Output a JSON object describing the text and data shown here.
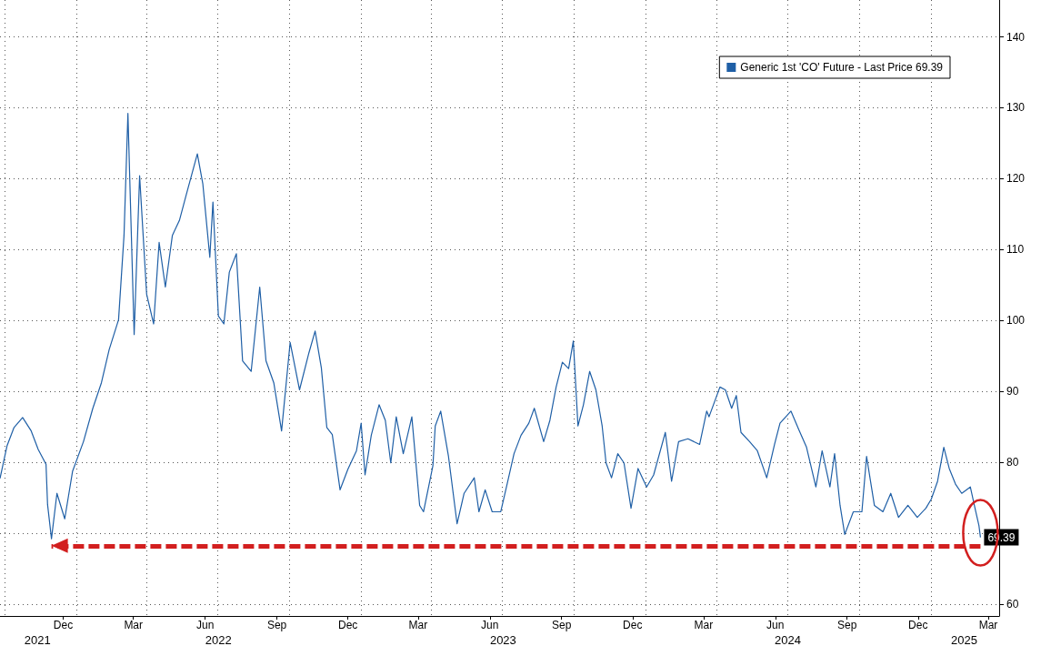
{
  "chart_data": {
    "type": "line",
    "xlim": [
      "2021-09-25",
      "2025-03-29"
    ],
    "xticks": [
      {
        "value": "2021-10-01",
        "label": null
      },
      {
        "value": "2022-01-01",
        "label": null
      },
      {
        "value": "2022-04-01",
        "label": null
      },
      {
        "value": "2022-07-01",
        "label": null
      },
      {
        "value": "2022-10-01",
        "label": null
      },
      {
        "value": "2023-01-01",
        "label": null
      },
      {
        "value": "2023-04-01",
        "label": null
      },
      {
        "value": "2023-07-01",
        "label": null
      },
      {
        "value": "2023-10-01",
        "label": null
      },
      {
        "value": "2024-01-01",
        "label": null
      },
      {
        "value": "2024-04-01",
        "label": null
      },
      {
        "value": "2024-07-01",
        "label": null
      },
      {
        "value": "2024-10-01",
        "label": null
      },
      {
        "value": "2025-01-01",
        "label": null
      },
      {
        "value": "2021-12-15",
        "label": "Dec"
      },
      {
        "value": "2022-03-15",
        "label": "Mar"
      },
      {
        "value": "2022-06-15",
        "label": "Jun"
      },
      {
        "value": "2022-09-15",
        "label": "Sep"
      },
      {
        "value": "2022-12-15",
        "label": "Dec"
      },
      {
        "value": "2023-03-15",
        "label": "Mar"
      },
      {
        "value": "2023-06-15",
        "label": "Jun"
      },
      {
        "value": "2023-09-15",
        "label": "Sep"
      },
      {
        "value": "2023-12-15",
        "label": "Dec"
      },
      {
        "value": "2024-03-15",
        "label": "Mar"
      },
      {
        "value": "2024-06-15",
        "label": "Jun"
      },
      {
        "value": "2024-09-15",
        "label": "Sep"
      },
      {
        "value": "2024-12-15",
        "label": "Dec"
      },
      {
        "value": "2025-03-15",
        "label": "Mar"
      }
    ],
    "x2lim": [
      "2021-09-25",
      "2025-03-29"
    ],
    "x2ticks": [
      {
        "value": "2021-11-12",
        "label": "2021"
      },
      {
        "value": "2022-07-02",
        "label": "2022"
      },
      {
        "value": "2023-07-02",
        "label": "2023"
      },
      {
        "value": "2024-07-01",
        "label": "2024"
      },
      {
        "value": "2025-02-12",
        "label": "2025"
      }
    ],
    "ylim": [
      58.3,
      145.2
    ],
    "yticks": [
      60,
      {
        "value": 70,
        "label": null
      },
      80,
      90,
      100,
      110,
      120,
      130,
      140
    ],
    "grid": true,
    "ref_lines": [
      {
        "axis": "y",
        "value": 68.2,
        "color": "#d21f1f",
        "line_style": "dashed"
      }
    ],
    "legend": "top right",
    "series": [
      {
        "name": "Generic 1st 'CO' Future - Last Price 69.39",
        "color": "#1f5fa6",
        "x": [
          "2021-09-25",
          "2021-10-04",
          "2021-10-13",
          "2021-10-24",
          "2021-11-04",
          "2021-11-13",
          "2021-11-23",
          "2021-11-25",
          "2021-11-30",
          "2021-12-07",
          "2021-12-17",
          "2021-12-27",
          "2022-01-10",
          "2022-01-22",
          "2022-02-02",
          "2022-02-12",
          "2022-02-24",
          "2022-03-03",
          "2022-03-08",
          "2022-03-16",
          "2022-03-23",
          "2022-04-01",
          "2022-04-10",
          "2022-04-17",
          "2022-04-25",
          "2022-05-04",
          "2022-05-13",
          "2022-05-22",
          "2022-06-05",
          "2022-06-12",
          "2022-06-21",
          "2022-06-25",
          "2022-07-02",
          "2022-07-09",
          "2022-07-16",
          "2022-07-25",
          "2022-08-02",
          "2022-08-13",
          "2022-08-24",
          "2022-09-01",
          "2022-09-11",
          "2022-09-21",
          "2022-10-02",
          "2022-10-14",
          "2022-10-26",
          "2022-11-03",
          "2022-11-11",
          "2022-11-18",
          "2022-11-25",
          "2022-12-05",
          "2022-12-15",
          "2022-12-26",
          "2023-01-01",
          "2023-01-06",
          "2023-01-14",
          "2023-01-24",
          "2023-02-01",
          "2023-02-08",
          "2023-02-15",
          "2023-02-24",
          "2023-03-07",
          "2023-03-17",
          "2023-03-22",
          "2023-04-03",
          "2023-04-06",
          "2023-04-13",
          "2023-04-23",
          "2023-05-04",
          "2023-05-13",
          "2023-05-26",
          "2023-06-01",
          "2023-06-09",
          "2023-06-18",
          "2023-06-29",
          "2023-07-08",
          "2023-07-16",
          "2023-07-25",
          "2023-08-04",
          "2023-08-11",
          "2023-08-23",
          "2023-08-31",
          "2023-09-08",
          "2023-09-16",
          "2023-09-24",
          "2023-09-30",
          "2023-10-06",
          "2023-10-13",
          "2023-10-21",
          "2023-10-29",
          "2023-11-06",
          "2023-11-11",
          "2023-11-18",
          "2023-11-26",
          "2023-12-04",
          "2023-12-13",
          "2023-12-22",
          "2024-01-02",
          "2024-01-11",
          "2024-01-26",
          "2024-02-03",
          "2024-02-12",
          "2024-02-24",
          "2024-03-10",
          "2024-03-19",
          "2024-03-22",
          "2024-04-05",
          "2024-04-12",
          "2024-04-20",
          "2024-04-26",
          "2024-05-02",
          "2024-05-13",
          "2024-05-23",
          "2024-06-04",
          "2024-06-14",
          "2024-06-21",
          "2024-07-05",
          "2024-07-15",
          "2024-07-25",
          "2024-08-06",
          "2024-08-14",
          "2024-08-24",
          "2024-08-30",
          "2024-09-06",
          "2024-09-12",
          "2024-09-23",
          "2024-10-04",
          "2024-10-10",
          "2024-10-20",
          "2024-10-31",
          "2024-11-10",
          "2024-11-20",
          "2024-12-02",
          "2024-12-14",
          "2024-12-25",
          "2025-01-01",
          "2025-01-09",
          "2025-01-17",
          "2025-01-24",
          "2025-02-01",
          "2025-02-09",
          "2025-02-20",
          "2025-02-27",
          "2025-03-03",
          "2025-03-05"
        ],
        "values": [
          77.7,
          82.3,
          84.9,
          86.3,
          84.4,
          81.8,
          79.7,
          74.0,
          69.2,
          75.6,
          72.0,
          78.7,
          82.9,
          87.6,
          91.2,
          95.9,
          100.1,
          112.0,
          129.2,
          98.0,
          120.4,
          103.7,
          99.5,
          111.0,
          104.7,
          112.0,
          114.1,
          117.8,
          123.5,
          119.3,
          108.9,
          116.7,
          100.6,
          99.5,
          106.8,
          109.4,
          94.3,
          92.8,
          104.7,
          94.3,
          91.2,
          84.4,
          96.9,
          90.2,
          95.4,
          98.5,
          93.3,
          84.9,
          83.9,
          76.1,
          79.0,
          81.6,
          85.5,
          78.2,
          83.8,
          88.1,
          85.9,
          79.9,
          86.4,
          81.2,
          86.4,
          73.9,
          73.0,
          79.5,
          85.1,
          87.2,
          80.8,
          71.3,
          75.6,
          77.8,
          73.0,
          76.1,
          73.0,
          73.0,
          77.3,
          81.2,
          83.8,
          85.5,
          87.6,
          82.9,
          85.9,
          90.6,
          94.1,
          93.2,
          97.1,
          85.1,
          88.1,
          92.8,
          90.2,
          85.1,
          79.9,
          77.8,
          81.2,
          79.9,
          73.5,
          79.1,
          76.5,
          78.2,
          84.2,
          77.3,
          82.9,
          83.3,
          82.5,
          87.2,
          86.4,
          90.6,
          90.2,
          87.6,
          89.4,
          84.2,
          82.9,
          81.6,
          77.8,
          82.5,
          85.5,
          87.2,
          84.6,
          82.1,
          76.5,
          81.6,
          76.5,
          81.2,
          73.9,
          69.8,
          73.0,
          73.0,
          80.8,
          73.9,
          73.0,
          75.6,
          72.2,
          73.9,
          72.2,
          73.5,
          74.8,
          77.3,
          82.1,
          79.1,
          76.9,
          75.6,
          76.5,
          73.0,
          71.1,
          69.39
        ],
        "value_labels": [
          null,
          null,
          null,
          null,
          null,
          null,
          null,
          null,
          null,
          null,
          null,
          null,
          null,
          null,
          null,
          null,
          null,
          null,
          null,
          null,
          null,
          null,
          null,
          null,
          null,
          null,
          null,
          null,
          null,
          null,
          null,
          null,
          null,
          null,
          null,
          null,
          null,
          null,
          null,
          null,
          null,
          null,
          null,
          null,
          null,
          null,
          null,
          null,
          null,
          null,
          null,
          null,
          null,
          null,
          null,
          null,
          null,
          null,
          null,
          null,
          null,
          null,
          null,
          null,
          null,
          null,
          null,
          null,
          null,
          null,
          null,
          null,
          null,
          null,
          null,
          null,
          null,
          null,
          null,
          null,
          null,
          null,
          null,
          null,
          null,
          null,
          null,
          null,
          null,
          null,
          null,
          null,
          null,
          null,
          null,
          null,
          null,
          null,
          null,
          null,
          null,
          null,
          null,
          null,
          null,
          null,
          null,
          null,
          null,
          null,
          null,
          null,
          null,
          null,
          null,
          null,
          null,
          null,
          null,
          null,
          null,
          null,
          null,
          null,
          null,
          null,
          null,
          null,
          null,
          null,
          null,
          null,
          null,
          null,
          null,
          null,
          null,
          null,
          null,
          null,
          null,
          null,
          null,
          "69.39"
        ]
      }
    ]
  }
}
